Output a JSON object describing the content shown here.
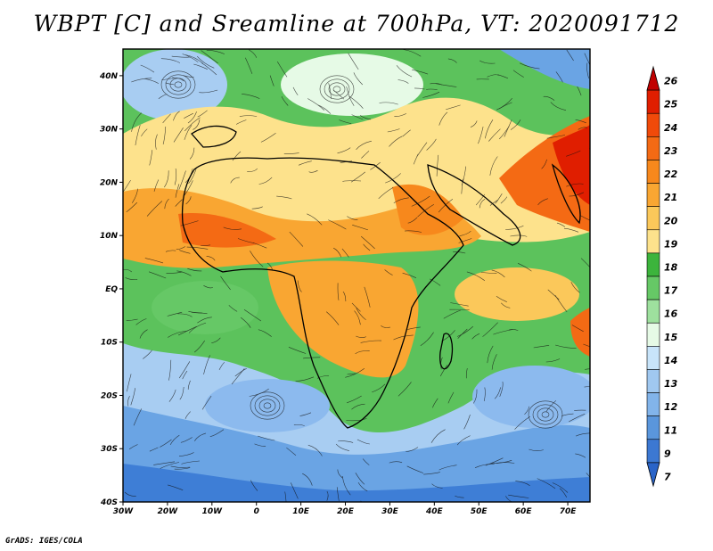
{
  "title": "WBPT [C] and Sreamline at 700hPa, VT: 2020091712",
  "credit": "GrADS: IGES/COLA",
  "lon_ticks": [
    "30W",
    "20W",
    "10W",
    "0",
    "10E",
    "20E",
    "30E",
    "40E",
    "50E",
    "60E",
    "70E"
  ],
  "lat_ticks": [
    "40N",
    "30N",
    "20N",
    "10N",
    "EQ",
    "10S",
    "20S",
    "30S",
    "40S"
  ],
  "colorbar": {
    "labels": [
      "26",
      "25",
      "24",
      "23",
      "22",
      "21",
      "20",
      "19",
      "18",
      "17",
      "16",
      "15",
      "14",
      "13",
      "12",
      "11",
      "9",
      "7"
    ],
    "colors": [
      "#c00000",
      "#e01e00",
      "#f04a0a",
      "#f46a14",
      "#f7881c",
      "#f9a632",
      "#fbc85a",
      "#fde28c",
      "#3cb43c",
      "#66c866",
      "#9ee09e",
      "#e6fae6",
      "#c8e4fa",
      "#a0c8f0",
      "#82b4ea",
      "#5a96dc",
      "#3c78d2",
      "#2a64c8"
    ]
  },
  "map": {
    "lon_range": [
      -30,
      75
    ],
    "lat_range": [
      -40,
      45
    ]
  }
}
